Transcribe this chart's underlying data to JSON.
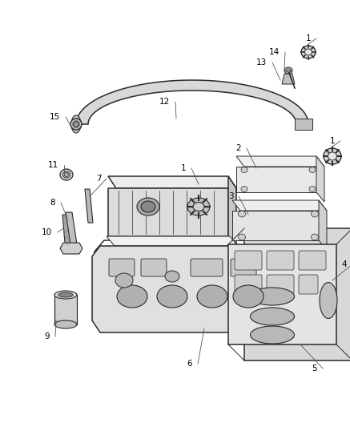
{
  "bg_color": "#ffffff",
  "line_color": "#2a2a2a",
  "label_color": "#000000",
  "fig_width": 4.37,
  "fig_height": 5.33,
  "dpi": 100
}
